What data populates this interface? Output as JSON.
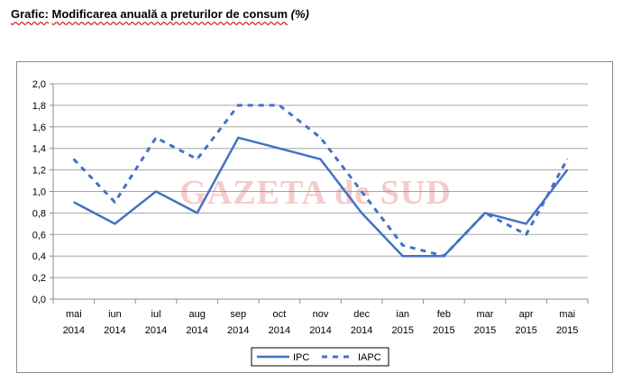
{
  "header": {
    "title_prefix": "Grafic:",
    "title_main": "Modificarea anuală a preturilor de consum",
    "title_unit": "(%)"
  },
  "watermark": "GAZETA de SUD",
  "chart_data": {
    "type": "line",
    "title": "Grafic: Modificarea anuală a preturilor de consum (%)",
    "categories": [
      [
        "mai",
        "2014"
      ],
      [
        "iun",
        "2014"
      ],
      [
        "iul",
        "2014"
      ],
      [
        "aug",
        "2014"
      ],
      [
        "sep",
        "2014"
      ],
      [
        "oct",
        "2014"
      ],
      [
        "nov",
        "2014"
      ],
      [
        "dec",
        "2014"
      ],
      [
        "ian",
        "2015"
      ],
      [
        "feb",
        "2015"
      ],
      [
        "mar",
        "2015"
      ],
      [
        "apr",
        "2015"
      ],
      [
        "mai",
        "2015"
      ]
    ],
    "series": [
      {
        "name": "IPC",
        "style": "solid",
        "color": "#4472c4",
        "values": [
          0.9,
          0.7,
          1.0,
          0.8,
          1.5,
          1.4,
          1.3,
          0.8,
          0.4,
          0.4,
          0.8,
          0.7,
          1.2
        ]
      },
      {
        "name": "IAPC",
        "style": "dashed",
        "color": "#4472c4",
        "values": [
          1.3,
          0.9,
          1.5,
          1.3,
          1.8,
          1.8,
          1.5,
          1.0,
          0.5,
          0.4,
          0.8,
          0.6,
          1.3
        ]
      }
    ],
    "ylim": [
      0,
      2.0
    ],
    "yticks": [
      "0,0",
      "0,2",
      "0,4",
      "0,6",
      "0,8",
      "1,0",
      "1,2",
      "1,4",
      "1,6",
      "1,8",
      "2,0"
    ],
    "grid": true,
    "legend_position": "bottom",
    "xlabel": "",
    "ylabel": ""
  }
}
